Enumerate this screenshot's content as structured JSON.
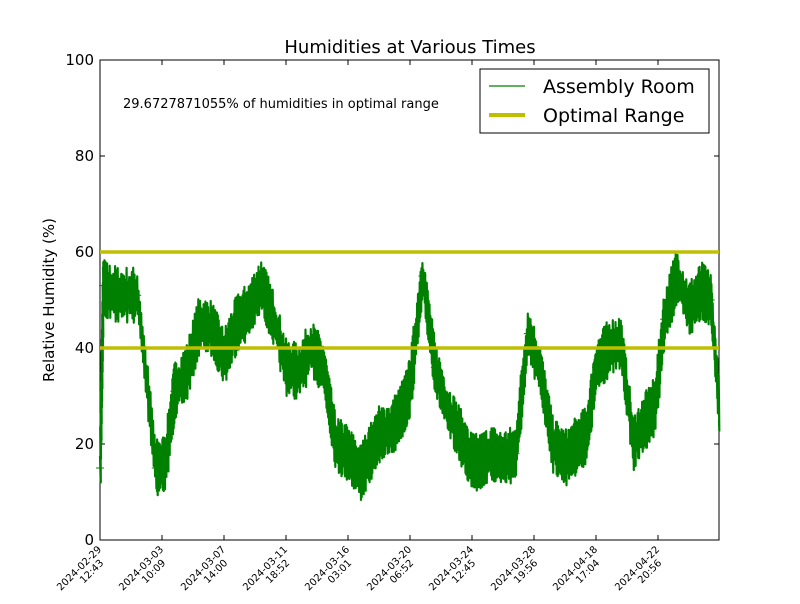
{
  "chart_data": {
    "type": "line",
    "title": "Humidities at Various Times",
    "xlabel": "",
    "ylabel": "Relative Humidity (%)",
    "ylim": [
      0,
      100
    ],
    "yticks": [
      0,
      20,
      40,
      60,
      80,
      100
    ],
    "grid": false,
    "legend_position": "top-right",
    "annotation": "29.6727871055% of humidities in optimal range",
    "xticks": [
      {
        "date": "2024-02-29",
        "time": "12:43"
      },
      {
        "date": "2024-03-03",
        "time": "10:09"
      },
      {
        "date": "2024-03-07",
        "time": "14:00"
      },
      {
        "date": "2024-03-11",
        "time": "18:52"
      },
      {
        "date": "2024-03-16",
        "time": "03:01"
      },
      {
        "date": "2024-03-20",
        "time": "06:52"
      },
      {
        "date": "2024-03-24",
        "time": "12:45"
      },
      {
        "date": "2024-03-28",
        "time": "19:56"
      },
      {
        "date": "2024-04-18",
        "time": "17:04"
      },
      {
        "date": "2024-04-22",
        "time": "20:56"
      }
    ],
    "series": [
      {
        "name": "Assembly Room",
        "color": "#008000",
        "marker": "+",
        "x_index": [
          0,
          0.05,
          0.1,
          0.3,
          0.6,
          0.9,
          1.05,
          1.2,
          1.4,
          1.6,
          1.8,
          2.0,
          2.2,
          2.4,
          2.6,
          2.8,
          3.0,
          3.2,
          3.4,
          3.6,
          3.8,
          4.0,
          4.2,
          4.35,
          4.5,
          4.7,
          4.9,
          5.0,
          5.2,
          5.4,
          5.6,
          5.8,
          5.95,
          6.1,
          6.3,
          6.5,
          6.7,
          6.9,
          7.1,
          7.3,
          7.5,
          7.7,
          7.85,
          8.0,
          8.2,
          8.4,
          8.6,
          8.8,
          8.95,
          9.1,
          9.3,
          9.5,
          9.7,
          9.85,
          10.0
        ],
        "values": [
          15,
          53,
          52,
          51,
          51,
          15,
          16,
          31,
          35,
          45,
          44,
          38,
          45,
          48,
          53,
          46,
          36,
          35,
          40,
          36,
          20,
          18,
          14,
          18,
          22,
          23,
          28,
          32,
          55,
          36,
          27,
          22,
          17,
          16,
          18,
          17,
          18,
          43,
          35,
          20,
          17,
          20,
          22,
          36,
          40,
          41,
          20,
          25,
          28,
          46,
          55,
          48,
          52,
          50,
          25
        ]
      },
      {
        "name": "Optimal Range",
        "color": "#BFBF00",
        "values": [
          40,
          60
        ]
      }
    ]
  }
}
